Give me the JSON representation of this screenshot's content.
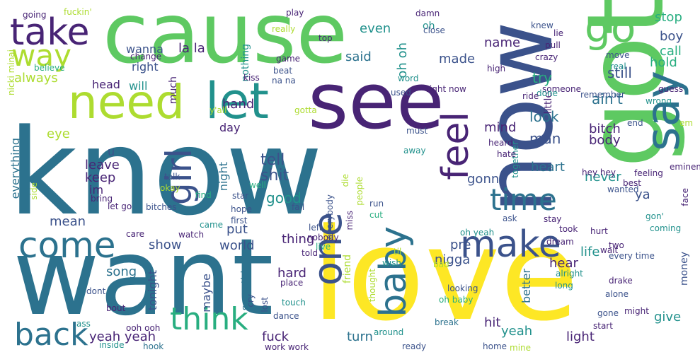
{
  "palette": {
    "purple": "#482475",
    "indigo": "#3b528b",
    "blue": "#2c728e",
    "teal": "#21918c",
    "sea": "#28ae80",
    "green": "#5ec962",
    "lime": "#addc30",
    "yellow": "#fde725"
  },
  "words": [
    {
      "text": "know",
      "color": "blue"
    },
    {
      "text": "want",
      "color": "blue"
    },
    {
      "text": "cause",
      "color": "green"
    },
    {
      "text": "love",
      "color": "yellow"
    },
    {
      "text": "got",
      "color": "green"
    },
    {
      "text": "see",
      "color": "purple"
    },
    {
      "text": "now",
      "color": "indigo"
    },
    {
      "text": "need",
      "color": "lime"
    },
    {
      "text": "go",
      "color": "green"
    },
    {
      "text": "let",
      "color": "teal"
    },
    {
      "text": "take",
      "color": "purple"
    },
    {
      "text": "say",
      "color": "blue"
    },
    {
      "text": "way",
      "color": "lime"
    },
    {
      "text": "come",
      "color": "blue"
    },
    {
      "text": "make",
      "color": "indigo"
    },
    {
      "text": "time",
      "color": "blue"
    },
    {
      "text": "feel",
      "color": "purple"
    },
    {
      "text": "girl",
      "color": "indigo"
    },
    {
      "text": "baby",
      "color": "blue"
    },
    {
      "text": "one",
      "color": "indigo"
    },
    {
      "text": "think",
      "color": "sea"
    },
    {
      "text": "back",
      "color": "blue"
    },
    {
      "text": "ain't",
      "color": "blue"
    },
    {
      "text": "look",
      "color": "blue"
    },
    {
      "text": "man",
      "color": "indigo"
    },
    {
      "text": "still",
      "color": "indigo"
    },
    {
      "text": "try",
      "color": "sea"
    },
    {
      "text": "tell",
      "color": "indigo"
    },
    {
      "text": "shit",
      "color": "indigo"
    },
    {
      "text": "good",
      "color": "teal"
    },
    {
      "text": "gonna",
      "color": "indigo"
    },
    {
      "text": "mind",
      "color": "purple"
    },
    {
      "text": "bitch",
      "color": "purple"
    },
    {
      "text": "body",
      "color": "purple"
    },
    {
      "text": "heart",
      "color": "blue"
    },
    {
      "text": "never",
      "color": "teal"
    },
    {
      "text": "life",
      "color": "teal"
    },
    {
      "text": "hear",
      "color": "purple"
    },
    {
      "text": "light",
      "color": "purple"
    },
    {
      "text": "give",
      "color": "teal"
    },
    {
      "text": "yeah",
      "color": "teal"
    },
    {
      "text": "yeah yeah",
      "color": "purple"
    },
    {
      "text": "fuck",
      "color": "purple"
    },
    {
      "text": "turn",
      "color": "blue"
    },
    {
      "text": "hit",
      "color": "purple"
    },
    {
      "text": "pre",
      "color": "indigo"
    },
    {
      "text": "better",
      "color": "blue"
    },
    {
      "text": "nigga",
      "color": "indigo"
    },
    {
      "text": "world",
      "color": "indigo"
    },
    {
      "text": "hard",
      "color": "purple"
    },
    {
      "text": "put",
      "color": "indigo"
    },
    {
      "text": "show",
      "color": "indigo"
    },
    {
      "text": "thing",
      "color": "purple"
    },
    {
      "text": "night",
      "color": "blue"
    },
    {
      "text": "day",
      "color": "purple"
    },
    {
      "text": "song",
      "color": "blue"
    },
    {
      "text": "mean",
      "color": "indigo"
    },
    {
      "text": "eye",
      "color": "lime"
    },
    {
      "text": "leave",
      "color": "purple"
    },
    {
      "text": "keep",
      "color": "purple"
    },
    {
      "text": "im",
      "color": "purple"
    },
    {
      "text": "u",
      "color": "indigo"
    },
    {
      "text": "hand",
      "color": "purple"
    },
    {
      "text": "head",
      "color": "purple"
    },
    {
      "text": "will",
      "color": "teal"
    },
    {
      "text": "much",
      "color": "purple"
    },
    {
      "text": "right",
      "color": "indigo"
    },
    {
      "text": "wanna",
      "color": "indigo"
    },
    {
      "text": "la la",
      "color": "purple"
    },
    {
      "text": "nothing",
      "color": "teal"
    },
    {
      "text": "said",
      "color": "blue"
    },
    {
      "text": "even",
      "color": "teal"
    },
    {
      "text": "oh oh",
      "color": "teal"
    },
    {
      "text": "made",
      "color": "indigo"
    },
    {
      "text": "name",
      "color": "purple"
    },
    {
      "text": "oh",
      "color": "teal"
    },
    {
      "text": "stop",
      "color": "sea"
    },
    {
      "text": "boy",
      "color": "indigo"
    },
    {
      "text": "call",
      "color": "sea"
    },
    {
      "text": "hold",
      "color": "sea"
    },
    {
      "text": "always",
      "color": "lime"
    },
    {
      "text": "everything",
      "color": "blue"
    },
    {
      "text": "tonight",
      "color": "indigo"
    },
    {
      "text": "maybe",
      "color": "indigo"
    },
    {
      "text": "something",
      "color": "blue"
    },
    {
      "text": "friend",
      "color": "lime"
    },
    {
      "text": "ya",
      "color": "indigo"
    },
    {
      "text": "money",
      "color": "indigo"
    },
    {
      "text": "little",
      "color": "purple"
    },
    {
      "text": "real",
      "color": "teal"
    },
    {
      "text": "move",
      "color": "indigo"
    },
    {
      "text": "guess",
      "color": "purple"
    },
    {
      "text": "wrong",
      "color": "teal"
    },
    {
      "text": "remember",
      "color": "indigo"
    },
    {
      "text": "end",
      "color": "indigo"
    },
    {
      "text": "eminem",
      "color": "purple"
    },
    {
      "text": "wanted",
      "color": "indigo"
    },
    {
      "text": "feeling",
      "color": "purple"
    },
    {
      "text": "best",
      "color": "purple"
    },
    {
      "text": "hey hey",
      "color": "purple"
    },
    {
      "text": "gon'",
      "color": "teal"
    },
    {
      "text": "coming",
      "color": "teal"
    },
    {
      "text": "hurt",
      "color": "purple"
    },
    {
      "text": "wait",
      "color": "purple"
    },
    {
      "text": "two",
      "color": "purple"
    },
    {
      "text": "every time",
      "color": "indigo"
    },
    {
      "text": "drake",
      "color": "purple"
    },
    {
      "text": "might",
      "color": "purple"
    },
    {
      "text": "alone",
      "color": "indigo"
    },
    {
      "text": "gone",
      "color": "indigo"
    },
    {
      "text": "start",
      "color": "purple"
    },
    {
      "text": "alright",
      "color": "teal"
    },
    {
      "text": "long",
      "color": "teal"
    },
    {
      "text": "dream",
      "color": "purple"
    },
    {
      "text": "took",
      "color": "purple"
    },
    {
      "text": "stay",
      "color": "purple"
    },
    {
      "text": "oh yeah",
      "color": "teal"
    },
    {
      "text": "ask",
      "color": "indigo"
    },
    {
      "text": "looking",
      "color": "indigo"
    },
    {
      "text": "oh baby",
      "color": "sea"
    },
    {
      "text": "break",
      "color": "blue"
    },
    {
      "text": "home",
      "color": "indigo"
    },
    {
      "text": "mine",
      "color": "lime"
    },
    {
      "text": "ready",
      "color": "indigo"
    },
    {
      "text": "around",
      "color": "teal"
    },
    {
      "text": "work work",
      "color": "purple"
    },
    {
      "text": "bad",
      "color": "lime"
    },
    {
      "text": "wish",
      "color": "teal"
    },
    {
      "text": "told",
      "color": "purple"
    },
    {
      "text": "til",
      "color": "lime"
    },
    {
      "text": "cut",
      "color": "sea"
    },
    {
      "text": "run",
      "color": "indigo"
    },
    {
      "text": "live",
      "color": "sea"
    },
    {
      "text": "nobody",
      "color": "purple"
    },
    {
      "text": "left",
      "color": "indigo"
    },
    {
      "text": "miss",
      "color": "purple"
    },
    {
      "text": "people",
      "color": "lime"
    },
    {
      "text": "everybody",
      "color": "indigo"
    },
    {
      "text": "die",
      "color": "lime"
    },
    {
      "text": "fall",
      "color": "indigo"
    },
    {
      "text": "well",
      "color": "sea"
    },
    {
      "text": "find",
      "color": "sea"
    },
    {
      "text": "okay",
      "color": "lime"
    },
    {
      "text": "talk",
      "color": "indigo"
    },
    {
      "text": "star",
      "color": "indigo"
    },
    {
      "text": "came",
      "color": "teal"
    },
    {
      "text": "let go",
      "color": "purple"
    },
    {
      "text": "bitches",
      "color": "indigo"
    },
    {
      "text": "bring",
      "color": "purple"
    },
    {
      "text": "side",
      "color": "lime"
    },
    {
      "text": "hope",
      "color": "indigo"
    },
    {
      "text": "first",
      "color": "indigo"
    },
    {
      "text": "care",
      "color": "purple"
    },
    {
      "text": "watch",
      "color": "purple"
    },
    {
      "text": "place",
      "color": "purple"
    },
    {
      "text": "touch",
      "color": "teal"
    },
    {
      "text": "dance",
      "color": "indigo"
    },
    {
      "text": "lost",
      "color": "indigo"
    },
    {
      "text": "cry",
      "color": "indigo"
    },
    {
      "text": "dont",
      "color": "indigo"
    },
    {
      "text": "bout",
      "color": "purple"
    },
    {
      "text": "ass",
      "color": "teal"
    },
    {
      "text": "ooh ooh",
      "color": "purple"
    },
    {
      "text": "inside",
      "color": "teal"
    },
    {
      "text": "hook",
      "color": "blue"
    },
    {
      "text": "thought",
      "color": "lime"
    },
    {
      "text": "right now",
      "color": "purple"
    },
    {
      "text": "used",
      "color": "indigo"
    },
    {
      "text": "must",
      "color": "indigo"
    },
    {
      "text": "away",
      "color": "teal"
    },
    {
      "text": "together",
      "color": "teal"
    },
    {
      "text": "hate",
      "color": "purple"
    },
    {
      "text": "heard",
      "color": "purple"
    },
    {
      "text": "someone",
      "color": "purple"
    },
    {
      "text": "done",
      "color": "teal"
    },
    {
      "text": "ride",
      "color": "purple"
    },
    {
      "text": "high",
      "color": "purple"
    },
    {
      "text": "crazy",
      "color": "purple"
    },
    {
      "text": "word",
      "color": "teal"
    },
    {
      "text": "y'all",
      "color": "lime"
    },
    {
      "text": "gotta",
      "color": "lime"
    },
    {
      "text": "kiss",
      "color": "purple"
    },
    {
      "text": "beat",
      "color": "indigo"
    },
    {
      "text": "na na",
      "color": "indigo"
    },
    {
      "text": "game",
      "color": "purple"
    },
    {
      "text": "really",
      "color": "lime"
    },
    {
      "text": "top",
      "color": "purple"
    },
    {
      "text": "damn",
      "color": "purple"
    },
    {
      "text": "close",
      "color": "indigo"
    },
    {
      "text": "knew",
      "color": "indigo"
    },
    {
      "text": "lie",
      "color": "purple"
    },
    {
      "text": "pull",
      "color": "purple"
    },
    {
      "text": "play",
      "color": "purple"
    },
    {
      "text": "change",
      "color": "purple"
    },
    {
      "text": "going",
      "color": "purple"
    },
    {
      "text": "fuckin'",
      "color": "lime"
    },
    {
      "text": "believe",
      "color": "sea"
    },
    {
      "text": "nicki minaj",
      "color": "lime"
    },
    {
      "text": "face",
      "color": "purple"
    },
    {
      "text": "em",
      "color": "lime"
    }
  ]
}
